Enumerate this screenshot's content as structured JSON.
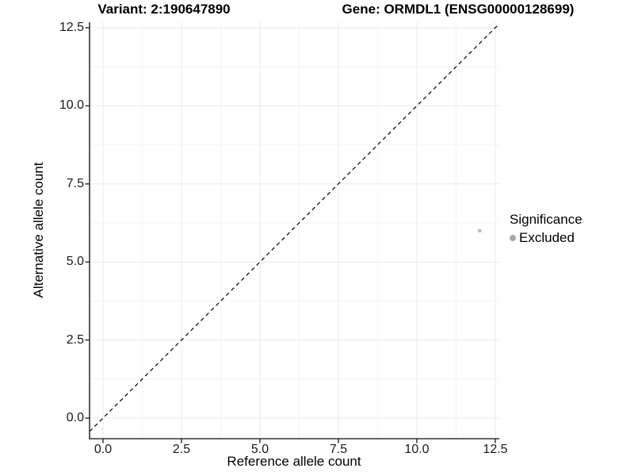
{
  "chart_data": {
    "type": "scatter",
    "title_left": "Variant: 2:190647890",
    "title_right": "Gene: ORMDL1 (ENSG00000128699)",
    "xlabel": "Reference allele count",
    "ylabel": "Alternative allele count",
    "x_ticks": [
      0.0,
      2.5,
      5.0,
      7.5,
      10.0,
      12.5
    ],
    "y_ticks": [
      0.0,
      2.5,
      5.0,
      7.5,
      10.0,
      12.5
    ],
    "x_tick_labels": [
      "0.0",
      "2.5",
      "5.0",
      "7.5",
      "10.0",
      "12.5"
    ],
    "y_tick_labels": [
      "0.0",
      "2.5",
      "5.0",
      "7.5",
      "10.0",
      "12.5"
    ],
    "x_minor_ticks": [
      1.25,
      3.75,
      6.25,
      8.75,
      11.25
    ],
    "y_minor_ticks": [
      1.25,
      3.75,
      6.25,
      8.75,
      11.25
    ],
    "xlim": [
      -0.43,
      12.63
    ],
    "ylim": [
      -0.66,
      12.68
    ],
    "grid": "major+minor",
    "legend_position": "right",
    "reference_line": {
      "type": "identity",
      "linetype": "dashed",
      "color": "#000000"
    },
    "points": [
      {
        "x": 12,
        "y": 6,
        "series": "Excluded"
      }
    ],
    "legend": {
      "title": "Significance",
      "items": [
        {
          "label": "Excluded",
          "color": "#a6a6a6"
        }
      ]
    },
    "colors": {
      "point": "#bcbcbc",
      "legend_key": "#a6a6a6",
      "axis_line": "#333333",
      "tick_mark": "#333333",
      "grid_major": "#e9e9e9",
      "grid_minor": "#f4f4f4",
      "dashed_line": "#000000",
      "background": "#ffffff"
    }
  }
}
